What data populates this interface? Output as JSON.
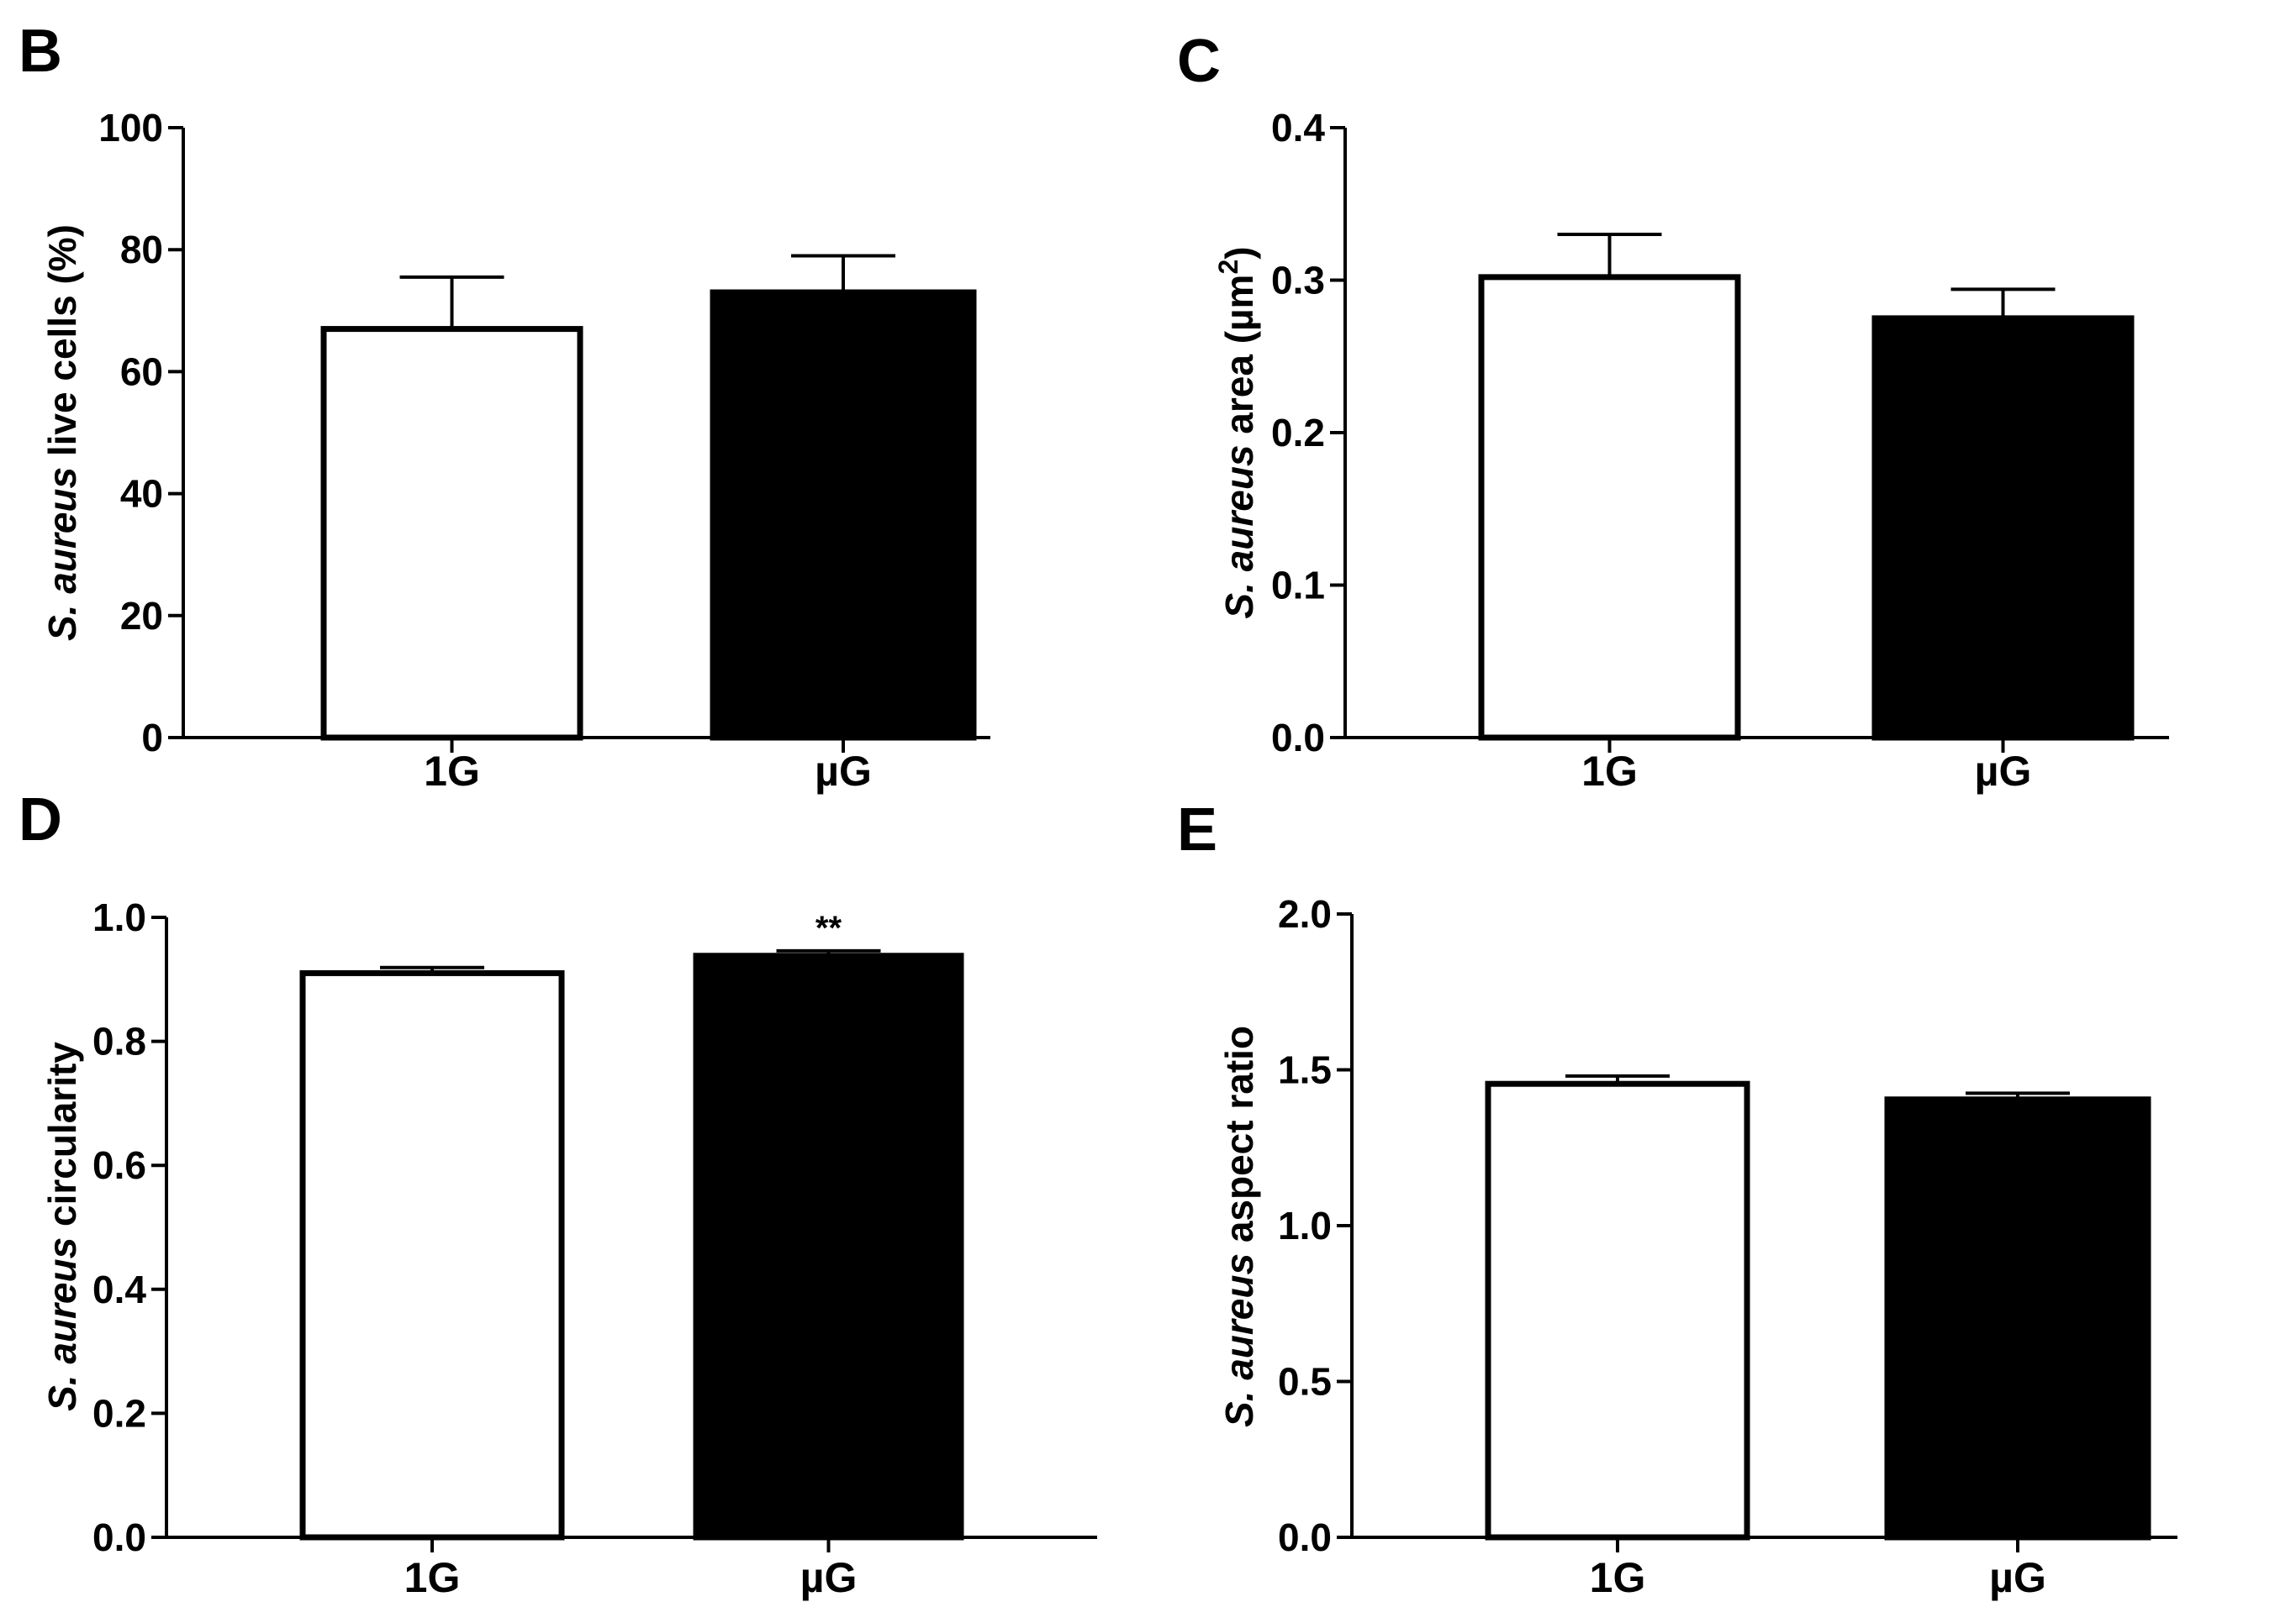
{
  "chart_data": [
    {
      "panel": "B",
      "type": "bar",
      "categories": [
        "1G",
        "µG"
      ],
      "values": [
        67,
        73
      ],
      "errors": [
        8.5,
        6
      ],
      "fills": [
        "#ffffff",
        "#000000"
      ],
      "ylabel_italic_prefix": "S. aureus",
      "ylabel_rest": "live cells (%)",
      "ylim": [
        0,
        100
      ],
      "yticks": [
        "0",
        "20",
        "40",
        "60",
        "80",
        "100"
      ],
      "ytick_values": [
        0,
        20,
        40,
        60,
        80,
        100
      ],
      "significance": [
        "",
        ""
      ]
    },
    {
      "panel": "C",
      "type": "bar",
      "categories": [
        "1G",
        "µG"
      ],
      "values": [
        0.302,
        0.275
      ],
      "errors": [
        0.028,
        0.019
      ],
      "fills": [
        "#ffffff",
        "#000000"
      ],
      "ylabel_italic_prefix": "S. aureus",
      "ylabel_rest": "area (µm",
      "ylabel_sup": "2",
      "ylabel_close": ")",
      "ylim": [
        0,
        0.4
      ],
      "yticks": [
        "0.0",
        "0.1",
        "0.2",
        "0.3",
        "0.4"
      ],
      "ytick_values": [
        0,
        0.1,
        0.2,
        0.3,
        0.4
      ],
      "significance": [
        "",
        ""
      ]
    },
    {
      "panel": "D",
      "type": "bar",
      "categories": [
        "1G",
        "µG"
      ],
      "values": [
        0.91,
        0.938
      ],
      "errors": [
        0.009,
        0.008
      ],
      "fills": [
        "#ffffff",
        "#000000"
      ],
      "ylabel_italic_prefix": "S. aureus",
      "ylabel_rest": "circularity",
      "ylim": [
        0,
        1.0
      ],
      "yticks": [
        "0.0",
        "0.2",
        "0.4",
        "0.6",
        "0.8",
        "1.0"
      ],
      "ytick_values": [
        0,
        0.2,
        0.4,
        0.6,
        0.8,
        1.0
      ],
      "significance": [
        "",
        "**"
      ]
    },
    {
      "panel": "E",
      "type": "bar",
      "categories": [
        "1G",
        "µG"
      ],
      "values": [
        1.455,
        1.405
      ],
      "errors": [
        0.025,
        0.02
      ],
      "fills": [
        "#ffffff",
        "#000000"
      ],
      "ylabel_italic_prefix": "S. aureus",
      "ylabel_rest": "aspect ratio",
      "ylim": [
        0,
        2.0
      ],
      "yticks": [
        "0.0",
        "0.5",
        "1.0",
        "1.5",
        "2.0"
      ],
      "ytick_values": [
        0,
        0.5,
        1.0,
        1.5,
        2.0
      ],
      "significance": [
        "",
        ""
      ]
    }
  ]
}
